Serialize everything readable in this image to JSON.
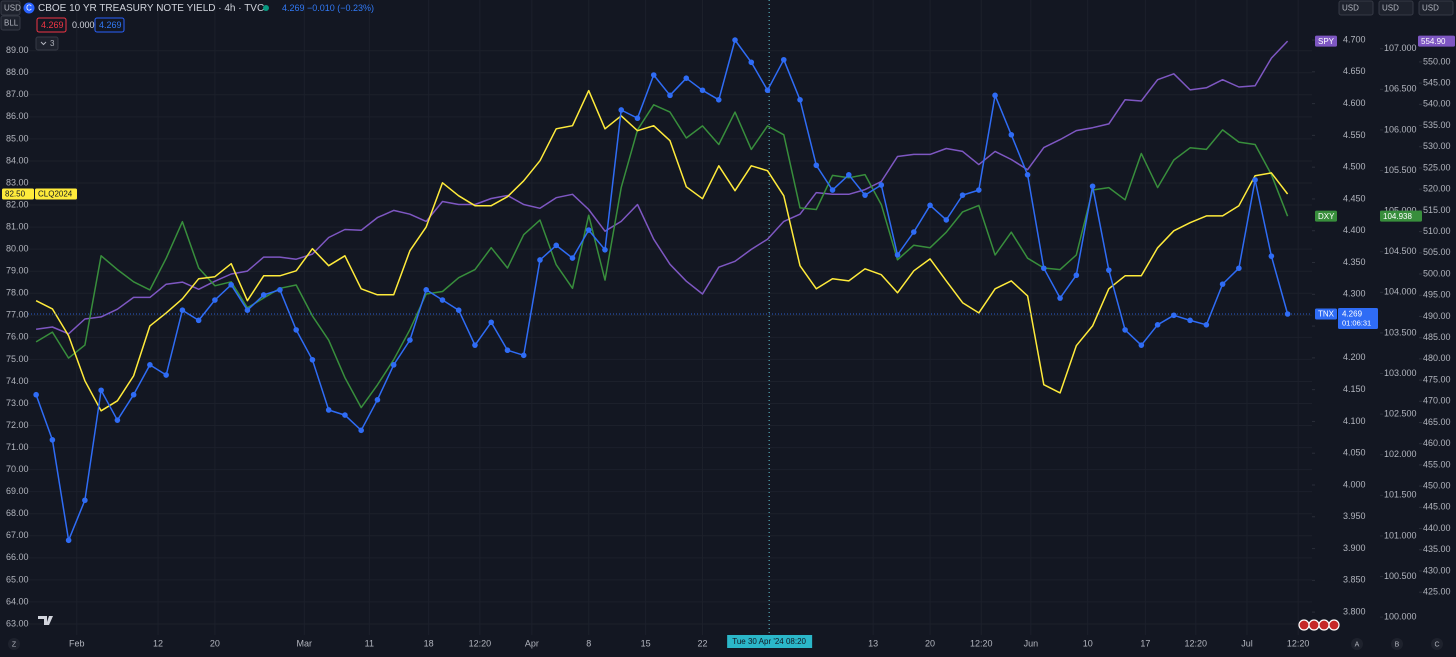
{
  "header": {
    "currency_left": "USD",
    "symbol_icon": "C",
    "title": "CBOE 10 YR TREASURY NOTE YIELD · 4h · TVC",
    "last": 4.269,
    "change": "−0.010 (−0.23%)",
    "indicator": "BLL",
    "indicator_values": [
      4.269,
      "0.000",
      4.269
    ],
    "collapsed": "3",
    "currencies_right": [
      "USD",
      "USD",
      "USD"
    ]
  },
  "chart_data": {
    "type": "line",
    "grid": true,
    "x": [
      -2,
      0,
      2,
      4,
      6,
      8,
      10,
      12,
      14,
      16,
      18,
      20,
      22,
      24,
      26,
      28,
      30,
      32,
      34,
      36,
      38,
      40,
      42,
      44,
      46,
      48,
      50,
      52,
      54,
      56,
      58,
      60,
      62,
      64,
      66,
      68,
      70,
      72,
      74,
      76,
      78,
      80,
      82,
      84,
      86,
      88,
      90,
      92,
      94,
      96,
      98,
      100,
      102,
      104,
      106,
      108,
      110,
      112,
      114,
      116,
      118,
      120,
      122,
      124,
      126,
      128,
      130,
      132,
      134,
      136,
      138,
      140,
      142,
      144,
      146,
      148,
      150,
      152
    ],
    "xlim": [
      -3,
      155
    ],
    "xticks": [
      {
        "value": 3,
        "label": "Feb"
      },
      {
        "value": 13,
        "label": "12"
      },
      {
        "value": 20,
        "label": "20"
      },
      {
        "value": 31,
        "label": "Mar"
      },
      {
        "value": 39,
        "label": "11"
      },
      {
        "value": 46.3,
        "label": "18"
      },
      {
        "value": 52.6,
        "label": "12:20"
      },
      {
        "value": 59,
        "label": "Apr"
      },
      {
        "value": 66,
        "label": "8"
      },
      {
        "value": 73,
        "label": "15"
      },
      {
        "value": 80,
        "label": "22"
      },
      {
        "value": 101,
        "label": "13"
      },
      {
        "value": 108,
        "label": "20"
      },
      {
        "value": 114.3,
        "label": "12:20"
      },
      {
        "value": 120.4,
        "label": "Jun"
      },
      {
        "value": 127.4,
        "label": "10"
      },
      {
        "value": 134.5,
        "label": "17"
      },
      {
        "value": 140.7,
        "label": "12:20"
      },
      {
        "value": 147,
        "label": "Jul"
      },
      {
        "value": 153.3,
        "label": "12:20"
      }
    ],
    "ylim": [
      62.5,
      91.3
    ],
    "yticks": [
      {
        "value": 63,
        "label": "63.00"
      },
      {
        "value": 64,
        "label": "64.00"
      },
      {
        "value": 65,
        "label": "65.00"
      },
      {
        "value": 66,
        "label": "66.00"
      },
      {
        "value": 67,
        "label": "67.00"
      },
      {
        "value": 68,
        "label": "68.00"
      },
      {
        "value": 69,
        "label": "69.00"
      },
      {
        "value": 70,
        "label": "70.00"
      },
      {
        "value": 71,
        "label": "71.00"
      },
      {
        "value": 72,
        "label": "72.00"
      },
      {
        "value": 73,
        "label": "73.00"
      },
      {
        "value": 74,
        "label": "74.00"
      },
      {
        "value": 75,
        "label": "75.00"
      },
      {
        "value": 76,
        "label": "76.00"
      },
      {
        "value": 77,
        "label": "77.00"
      },
      {
        "value": 78,
        "label": "78.00"
      },
      {
        "value": 79,
        "label": "79.00"
      },
      {
        "value": 80,
        "label": "80.00"
      },
      {
        "value": 81,
        "label": "81.00"
      },
      {
        "value": 82,
        "label": "82.00"
      },
      {
        "value": 83,
        "label": "83.00"
      },
      {
        "value": 84,
        "label": "84.00"
      },
      {
        "value": 85,
        "label": "85.00"
      },
      {
        "value": 86,
        "label": "86.00"
      },
      {
        "value": 87,
        "label": "87.00"
      },
      {
        "value": 88,
        "label": "88.00"
      },
      {
        "value": 89,
        "label": "89.00"
      }
    ],
    "y2lim": [
      3.764,
      4.763
    ],
    "y2ticks": [
      {
        "value": 3.8,
        "label": "3.800"
      },
      {
        "value": 3.85,
        "label": "3.850"
      },
      {
        "value": 3.9,
        "label": "3.900"
      },
      {
        "value": 3.95,
        "label": "3.950"
      },
      {
        "value": 4.0,
        "label": "4.000"
      },
      {
        "value": 4.05,
        "label": "4.050"
      },
      {
        "value": 4.1,
        "label": "4.100"
      },
      {
        "value": 4.15,
        "label": "4.150"
      },
      {
        "value": 4.2,
        "label": "4.200"
      },
      {
        "value": 4.25,
        "label": "4.250"
      },
      {
        "value": 4.3,
        "label": "4.300"
      },
      {
        "value": 4.35,
        "label": "4.350"
      },
      {
        "value": 4.4,
        "label": "4.400"
      },
      {
        "value": 4.45,
        "label": "4.450"
      },
      {
        "value": 4.5,
        "label": "4.500"
      },
      {
        "value": 4.55,
        "label": "4.550"
      },
      {
        "value": 4.6,
        "label": "4.600"
      },
      {
        "value": 4.65,
        "label": "4.650"
      },
      {
        "value": 4.7,
        "label": "4.700"
      }
    ],
    "y3lim": [
      99.78,
      107.6
    ],
    "y3ticks": [
      {
        "value": 100,
        "label": "100.000"
      },
      {
        "value": 100.5,
        "label": "100.500"
      },
      {
        "value": 101,
        "label": "101.000"
      },
      {
        "value": 101.5,
        "label": "101.500"
      },
      {
        "value": 102,
        "label": "102.000"
      },
      {
        "value": 102.5,
        "label": "102.500"
      },
      {
        "value": 103,
        "label": "103.000"
      },
      {
        "value": 103.5,
        "label": "103.500"
      },
      {
        "value": 104,
        "label": "104.000"
      },
      {
        "value": 104.5,
        "label": "104.500"
      },
      {
        "value": 105,
        "label": "105.000"
      },
      {
        "value": 105.5,
        "label": "105.500"
      },
      {
        "value": 106,
        "label": "106.000"
      },
      {
        "value": 106.5,
        "label": "106.500"
      },
      {
        "value": 107,
        "label": "107.000"
      }
    ],
    "y4lim": [
      414.9,
      564.6
    ],
    "y4ticks": [
      {
        "value": 425,
        "label": "425.00"
      },
      {
        "value": 430,
        "label": "430.00"
      },
      {
        "value": 435,
        "label": "435.00"
      },
      {
        "value": 440,
        "label": "440.00"
      },
      {
        "value": 445,
        "label": "445.00"
      },
      {
        "value": 450,
        "label": "450.00"
      },
      {
        "value": 455,
        "label": "455.00"
      },
      {
        "value": 460,
        "label": "460.00"
      },
      {
        "value": 465,
        "label": "465.00"
      },
      {
        "value": 470,
        "label": "470.00"
      },
      {
        "value": 475,
        "label": "475.00"
      },
      {
        "value": 480,
        "label": "480.00"
      },
      {
        "value": 485,
        "label": "485.00"
      },
      {
        "value": 490,
        "label": "490.00"
      },
      {
        "value": 495,
        "label": "495.00"
      },
      {
        "value": 500,
        "label": "500.00"
      },
      {
        "value": 505,
        "label": "505.00"
      },
      {
        "value": 510,
        "label": "510.00"
      },
      {
        "value": 515,
        "label": "515.00"
      },
      {
        "value": 520,
        "label": "520.00"
      },
      {
        "value": 525,
        "label": "525.00"
      },
      {
        "value": 530,
        "label": "530.00"
      },
      {
        "value": 535,
        "label": "535.00"
      },
      {
        "value": 540,
        "label": "540.00"
      },
      {
        "value": 545,
        "label": "545.00"
      },
      {
        "value": 550,
        "label": "550.00"
      }
    ],
    "series": [
      {
        "name": "SPY",
        "color": "#7e57c2",
        "axis": "y4",
        "price_label": "554.90",
        "values": [
          487.0,
          487.5,
          485.9,
          489.4,
          489.9,
          491.7,
          494.5,
          494.5,
          497.6,
          498.1,
          496.4,
          498.3,
          500.0,
          500.7,
          504.0,
          504.0,
          503.5,
          504.7,
          508.6,
          510.5,
          510.3,
          513.3,
          515.0,
          514.1,
          512.4,
          517.1,
          516.4,
          516.4,
          517.8,
          518.5,
          516.4,
          515.5,
          518.0,
          518.8,
          515.2,
          510.1,
          512.4,
          516.4,
          508.2,
          502.3,
          498.3,
          495.3,
          501.6,
          503.0,
          505.8,
          508.2,
          512.4,
          514.1,
          519.2,
          518.8,
          518.8,
          519.9,
          521.8,
          527.7,
          528.2,
          528.2,
          529.6,
          528.9,
          525.8,
          528.9,
          527.0,
          524.6,
          529.8,
          531.7,
          533.8,
          534.5,
          535.4,
          541.1,
          540.8,
          545.8,
          547.2,
          543.4,
          543.9,
          545.8,
          544.1,
          544.4,
          550.9,
          554.9
        ]
      },
      {
        "name": "DXY",
        "color": "#388e3c",
        "axis": "y3",
        "values": [
          103.39,
          103.51,
          103.19,
          103.35,
          104.45,
          104.28,
          104.13,
          104.03,
          104.42,
          104.87,
          104.3,
          104.08,
          104.13,
          103.81,
          103.93,
          104.05,
          104.09,
          103.71,
          103.41,
          102.95,
          102.58,
          102.86,
          103.17,
          103.54,
          103.98,
          104.01,
          104.18,
          104.28,
          104.55,
          104.3,
          104.71,
          104.89,
          104.34,
          104.05,
          104.95,
          104.15,
          105.29,
          106.0,
          106.31,
          106.22,
          105.9,
          106.05,
          105.82,
          106.22,
          105.76,
          106.05,
          105.94,
          105.04,
          105.02,
          105.44,
          105.41,
          105.45,
          105.08,
          104.4,
          104.58,
          104.55,
          104.74,
          104.99,
          105.07,
          104.46,
          104.74,
          104.42,
          104.3,
          104.28,
          104.46,
          105.26,
          105.29,
          105.14,
          105.71,
          105.29,
          105.63,
          105.78,
          105.76,
          106.0,
          105.85,
          105.82,
          105.45,
          104.938
        ]
      },
      {
        "name": "CLQ2024",
        "color": "#ffeb3b",
        "axis": "y",
        "price_label": "82.50",
        "values": [
          77.66,
          77.29,
          76.07,
          74.03,
          72.67,
          73.12,
          74.25,
          76.52,
          77.11,
          77.75,
          78.66,
          78.75,
          79.34,
          77.66,
          78.79,
          78.79,
          79.02,
          80.02,
          79.25,
          79.7,
          78.2,
          77.93,
          77.93,
          79.93,
          81.01,
          83.01,
          82.42,
          81.97,
          81.97,
          82.38,
          83.1,
          84.01,
          85.46,
          85.6,
          87.19,
          85.46,
          86.05,
          85.37,
          85.6,
          84.92,
          82.83,
          82.29,
          83.78,
          82.65,
          83.78,
          83.56,
          82.42,
          79.25,
          78.2,
          78.66,
          78.56,
          79.11,
          78.84,
          78.02,
          79.02,
          79.56,
          78.56,
          77.57,
          77.11,
          78.2,
          78.56,
          77.88,
          73.85,
          73.48,
          75.62,
          76.52,
          78.2,
          78.79,
          78.79,
          80.06,
          80.83,
          81.2,
          81.51,
          81.51,
          81.97,
          83.33,
          83.46,
          82.5
        ]
      },
      {
        "name": "TNX",
        "color": "#2f6cf5",
        "axis": "y2",
        "markers": true,
        "countdown": "01:06:31",
        "values": [
          4.142,
          4.071,
          3.913,
          3.976,
          4.149,
          4.102,
          4.142,
          4.189,
          4.173,
          4.275,
          4.259,
          4.291,
          4.315,
          4.275,
          4.299,
          4.307,
          4.244,
          4.197,
          4.118,
          4.11,
          4.086,
          4.134,
          4.189,
          4.228,
          4.307,
          4.291,
          4.275,
          4.22,
          4.256,
          4.212,
          4.204,
          4.354,
          4.377,
          4.357,
          4.401,
          4.37,
          4.59,
          4.577,
          4.645,
          4.613,
          4.64,
          4.621,
          4.606,
          4.7,
          4.665,
          4.621,
          4.669,
          4.606,
          4.503,
          4.464,
          4.488,
          4.456,
          4.472,
          4.362,
          4.398,
          4.44,
          4.417,
          4.456,
          4.464,
          4.613,
          4.551,
          4.488,
          4.341,
          4.294,
          4.33,
          4.47,
          4.338,
          4.244,
          4.22,
          4.252,
          4.267,
          4.259,
          4.252,
          4.316,
          4.341,
          4.48,
          4.36,
          4.269
        ]
      }
    ],
    "crosshair": {
      "x": 88.2,
      "label": "Tue 30 Apr '24  08:20"
    }
  },
  "footer": {
    "left": "Z",
    "right": [
      "A",
      "B",
      "C"
    ]
  }
}
